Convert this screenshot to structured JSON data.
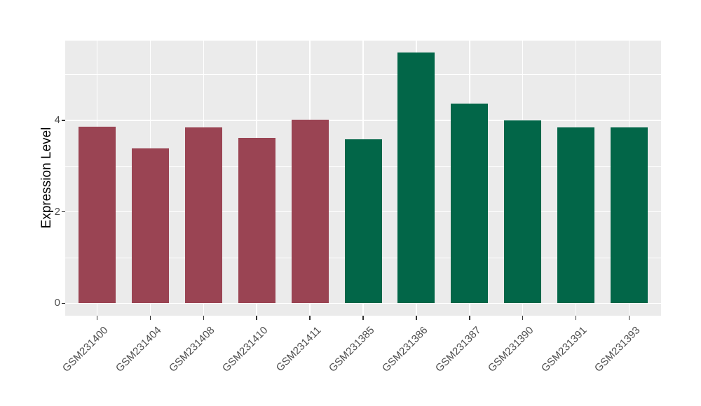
{
  "chart_data": {
    "type": "bar",
    "title": "",
    "xlabel": "",
    "ylabel": "Expression Level",
    "categories": [
      "GSM231400",
      "GSM231404",
      "GSM231408",
      "GSM231410",
      "GSM231411",
      "GSM231385",
      "GSM231386",
      "GSM231387",
      "GSM231390",
      "GSM231391",
      "GSM231393"
    ],
    "values": [
      3.86,
      3.39,
      3.85,
      3.62,
      4.01,
      3.59,
      5.48,
      4.37,
      3.99,
      3.85,
      3.84
    ],
    "bar_groups": [
      "group1",
      "group1",
      "group1",
      "group1",
      "group1",
      "group2",
      "group2",
      "group2",
      "group2",
      "group2",
      "group2"
    ],
    "colors": {
      "group1": "#9A4453",
      "group2": "#026648"
    },
    "yticks": [
      0,
      2,
      4
    ],
    "minor_gridlines": [
      1,
      3,
      5
    ],
    "ylim": [
      -0.27,
      5.74
    ],
    "legend_position": "none",
    "grid": true,
    "panel_background": "#EBEBEB",
    "gridline_color": "#FFFFFF",
    "tick_mark_color": "#333333",
    "tick_label_color": "#4D4D4D",
    "axis_title_color": "#000000"
  }
}
